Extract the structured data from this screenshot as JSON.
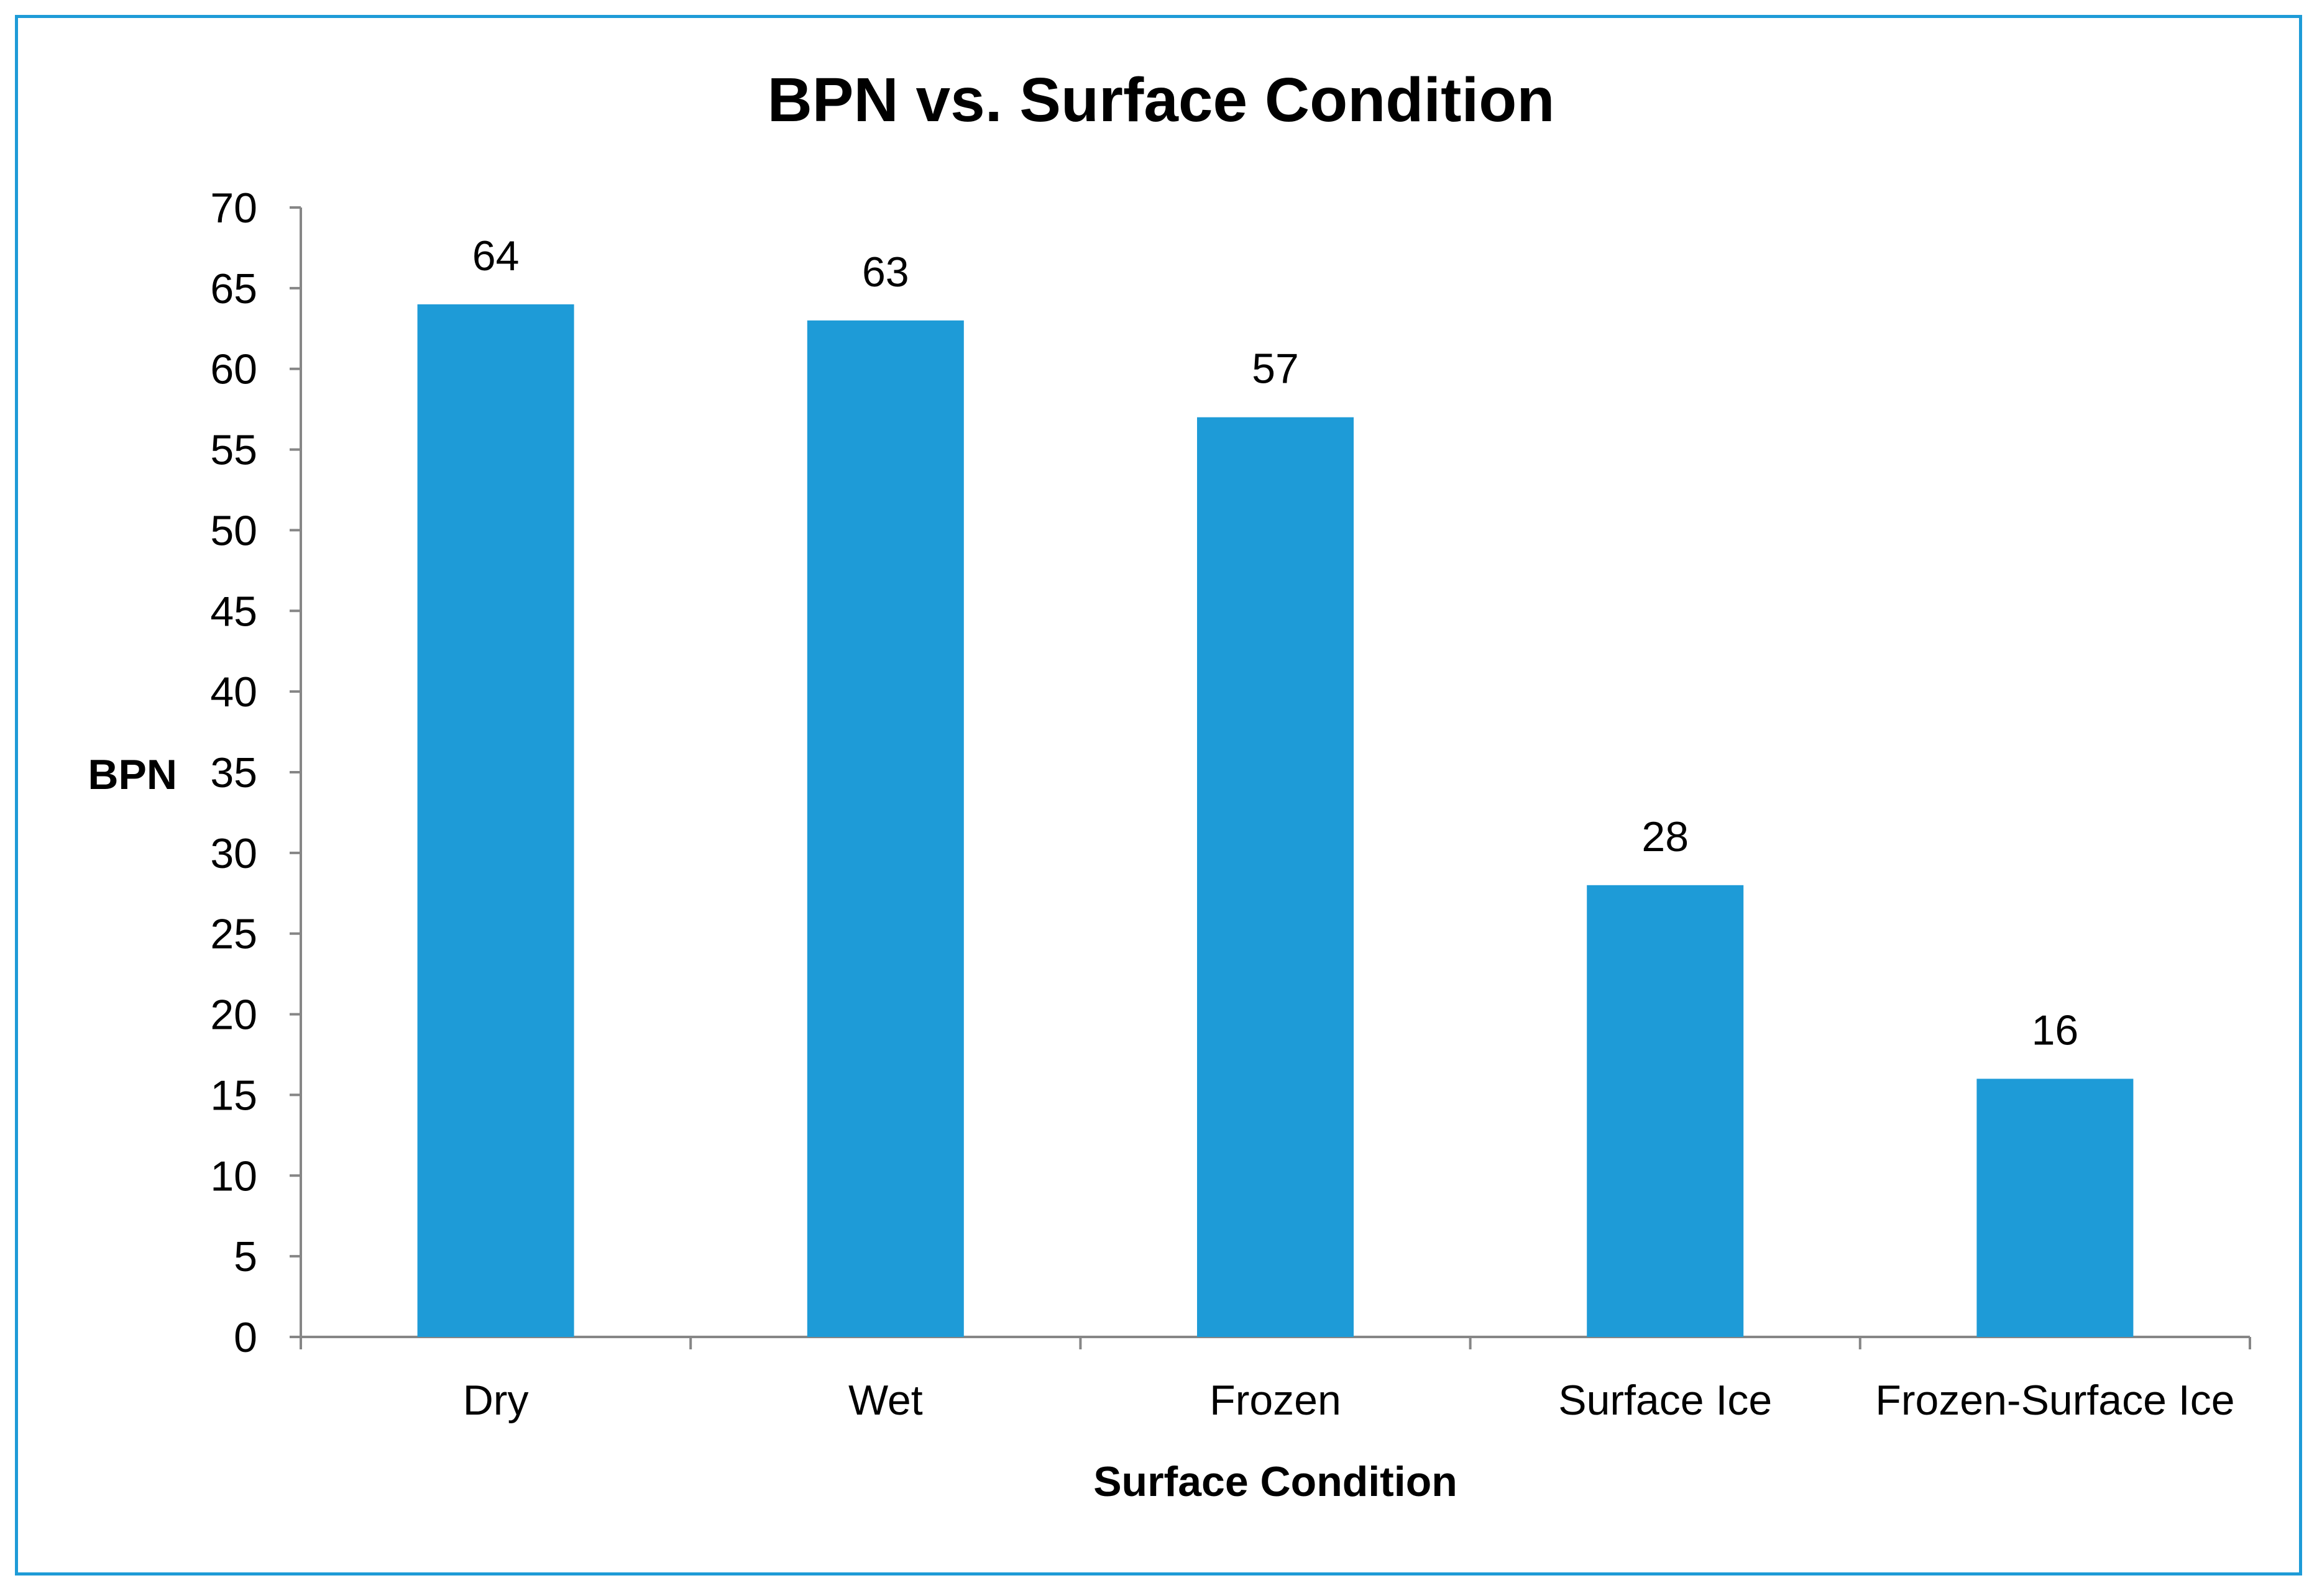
{
  "chart_data": {
    "type": "bar",
    "title": "BPN vs. Surface Condition",
    "xlabel": "Surface Condition",
    "ylabel": "BPN",
    "categories": [
      "Dry",
      "Wet",
      "Frozen",
      "Surface Ice",
      "Frozen-Surface Ice"
    ],
    "values": [
      64,
      63,
      57,
      28,
      16
    ],
    "data_labels": [
      "64",
      "63",
      "57",
      "28",
      "16"
    ],
    "ylim": [
      0,
      70
    ],
    "ytick_step": 5,
    "yticks": [
      "0",
      "5",
      "10",
      "15",
      "20",
      "25",
      "30",
      "35",
      "40",
      "45",
      "50",
      "55",
      "60",
      "65",
      "70"
    ],
    "grid": false,
    "legend": "none",
    "colors": {
      "bar": "#1e9bd7",
      "frame": "#1e9bd7",
      "axis": "#868686"
    }
  }
}
